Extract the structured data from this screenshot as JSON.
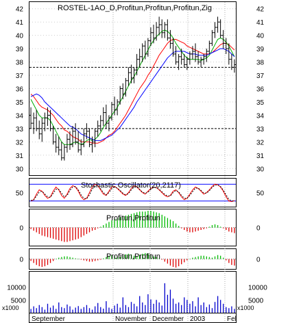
{
  "chart_data": [
    {
      "type": "ohlc",
      "title": "ROSTEL-1AO_D,Profitun,Profitun,Profitun,Zig",
      "ylim": [
        29.5,
        42.5
      ],
      "yticks": [
        "30",
        "31",
        "32",
        "33",
        "34",
        "35",
        "36",
        "37",
        "38",
        "39",
        "40",
        "41",
        "42"
      ],
      "ohlc": [
        [
          34.0,
          34.6,
          33.0,
          33.4
        ],
        [
          33.4,
          34.2,
          32.6,
          33.8
        ],
        [
          33.8,
          34.4,
          32.8,
          33.0
        ],
        [
          33.0,
          33.6,
          32.2,
          32.6
        ],
        [
          32.6,
          33.8,
          32.0,
          33.4
        ],
        [
          33.4,
          34.2,
          32.8,
          33.8
        ],
        [
          33.8,
          34.6,
          33.2,
          34.0
        ],
        [
          34.0,
          34.4,
          32.8,
          33.0
        ],
        [
          33.0,
          33.2,
          31.8,
          32.0
        ],
        [
          32.0,
          32.6,
          31.2,
          31.6
        ],
        [
          31.6,
          32.4,
          31.0,
          31.4
        ],
        [
          31.4,
          32.0,
          30.6,
          30.8
        ],
        [
          30.8,
          31.8,
          30.6,
          31.6
        ],
        [
          31.6,
          32.6,
          31.2,
          32.2
        ],
        [
          32.2,
          32.8,
          31.4,
          31.8
        ],
        [
          31.8,
          33.2,
          31.6,
          32.8
        ],
        [
          32.8,
          33.4,
          31.8,
          32.0
        ],
        [
          32.0,
          32.8,
          31.2,
          31.4
        ],
        [
          31.4,
          32.2,
          31.0,
          31.8
        ],
        [
          31.8,
          33.0,
          31.6,
          32.6
        ],
        [
          32.6,
          33.4,
          32.2,
          32.8
        ],
        [
          32.8,
          33.0,
          31.6,
          31.8
        ],
        [
          31.8,
          32.4,
          31.2,
          32.0
        ],
        [
          32.0,
          33.0,
          31.6,
          32.8
        ],
        [
          32.8,
          33.6,
          32.4,
          33.2
        ],
        [
          33.2,
          34.0,
          32.8,
          33.6
        ],
        [
          33.6,
          34.6,
          33.2,
          34.2
        ],
        [
          34.2,
          34.8,
          33.0,
          33.4
        ],
        [
          33.4,
          34.0,
          32.8,
          33.8
        ],
        [
          33.8,
          35.0,
          33.6,
          34.8
        ],
        [
          34.8,
          35.4,
          34.0,
          34.4
        ],
        [
          34.4,
          35.2,
          34.0,
          35.0
        ],
        [
          35.0,
          36.2,
          34.8,
          36.0
        ],
        [
          36.0,
          36.4,
          35.2,
          35.6
        ],
        [
          35.6,
          36.8,
          35.4,
          36.6
        ],
        [
          36.6,
          37.6,
          36.2,
          37.2
        ],
        [
          37.2,
          37.8,
          36.4,
          36.8
        ],
        [
          36.8,
          37.6,
          36.4,
          37.4
        ],
        [
          37.4,
          38.6,
          37.0,
          38.2
        ],
        [
          38.2,
          39.0,
          37.6,
          38.4
        ],
        [
          38.4,
          39.4,
          38.0,
          39.2
        ],
        [
          39.2,
          39.6,
          38.2,
          38.6
        ],
        [
          38.6,
          39.8,
          38.4,
          39.6
        ],
        [
          39.6,
          40.6,
          39.2,
          40.2
        ],
        [
          40.2,
          40.8,
          39.4,
          39.8
        ],
        [
          39.8,
          41.0,
          39.6,
          40.6
        ],
        [
          40.6,
          41.4,
          40.0,
          40.8
        ],
        [
          40.8,
          41.2,
          39.8,
          40.2
        ],
        [
          40.2,
          41.0,
          39.8,
          40.8
        ],
        [
          40.8,
          41.2,
          39.6,
          39.8
        ],
        [
          39.8,
          40.4,
          39.0,
          39.4
        ],
        [
          39.4,
          39.8,
          38.4,
          38.6
        ],
        [
          38.6,
          39.2,
          37.8,
          38.0
        ],
        [
          38.0,
          38.6,
          37.4,
          38.4
        ],
        [
          38.4,
          39.0,
          37.8,
          38.2
        ],
        [
          38.2,
          38.6,
          37.6,
          37.8
        ],
        [
          37.8,
          38.4,
          37.4,
          38.2
        ],
        [
          38.2,
          38.8,
          37.8,
          38.6
        ],
        [
          38.6,
          39.2,
          38.2,
          38.8
        ],
        [
          38.8,
          39.4,
          38.0,
          38.4
        ],
        [
          38.4,
          38.8,
          37.8,
          38.0
        ],
        [
          38.0,
          38.4,
          37.6,
          38.2
        ],
        [
          38.2,
          38.6,
          37.8,
          38.4
        ],
        [
          38.4,
          39.0,
          38.0,
          38.8
        ],
        [
          38.8,
          39.6,
          38.6,
          39.4
        ],
        [
          39.4,
          40.4,
          39.2,
          40.2
        ],
        [
          40.2,
          41.0,
          39.8,
          40.6
        ],
        [
          40.6,
          41.4,
          40.2,
          41.0
        ],
        [
          41.0,
          41.2,
          39.8,
          40.0
        ],
        [
          40.0,
          40.4,
          39.0,
          39.4
        ],
        [
          39.4,
          39.8,
          38.6,
          39.0
        ],
        [
          39.0,
          39.4,
          37.8,
          38.2
        ],
        [
          38.2,
          38.6,
          37.4,
          37.6
        ],
        [
          37.6,
          38.2,
          37.2,
          37.8
        ]
      ],
      "moving_averages": [
        {
          "color": "#ff0000",
          "values": [
            35.6,
            35.4,
            35.1,
            34.8,
            34.6,
            34.5,
            34.4,
            34.2,
            34.0,
            33.7,
            33.4,
            33.2,
            32.9,
            32.8,
            32.6,
            32.4,
            32.3,
            32.2,
            32.0,
            32.0,
            32.0,
            32.0,
            31.9,
            31.9,
            31.9,
            32.0,
            32.1,
            32.3,
            32.5,
            32.6,
            32.8,
            33.1,
            33.4,
            33.7,
            34.0,
            34.4,
            34.8,
            35.2,
            35.6,
            36.0,
            36.3,
            36.6,
            37.0,
            37.3,
            37.7,
            38.1,
            38.5,
            38.8,
            39.1,
            39.4,
            39.6,
            39.7,
            39.7,
            39.6,
            39.5,
            39.4,
            39.2,
            39.1,
            39.0,
            38.9,
            38.8,
            38.7,
            38.6,
            38.6,
            38.6,
            38.7,
            38.9,
            39.1,
            39.3,
            39.4,
            39.4,
            39.3,
            39.1,
            38.9
          ]
        },
        {
          "color": "#00aa00",
          "values": [
            35.2,
            34.8,
            34.4,
            34.0,
            33.8,
            33.8,
            33.8,
            33.6,
            33.2,
            32.8,
            32.4,
            32.0,
            31.8,
            31.8,
            31.8,
            31.9,
            32.0,
            31.9,
            31.8,
            31.9,
            32.1,
            32.2,
            32.1,
            32.2,
            32.4,
            32.7,
            33.1,
            33.4,
            33.7,
            34.0,
            34.3,
            34.6,
            35.0,
            35.4,
            35.8,
            36.2,
            36.6,
            36.9,
            37.3,
            37.7,
            38.1,
            38.5,
            38.9,
            39.3,
            39.6,
            39.9,
            40.1,
            40.3,
            40.4,
            40.3,
            40.1,
            39.8,
            39.4,
            39.1,
            38.8,
            38.5,
            38.3,
            38.2,
            38.2,
            38.2,
            38.2,
            38.1,
            38.2,
            38.3,
            38.5,
            38.9,
            39.3,
            39.7,
            39.8,
            39.7,
            39.5,
            39.2,
            38.8,
            38.4
          ]
        },
        {
          "color": "#0000ff",
          "values": [
            35.4,
            35.5,
            35.6,
            35.5,
            35.3,
            35.0,
            34.8,
            34.6,
            34.4,
            34.2,
            34.0,
            33.8,
            33.6,
            33.4,
            33.2,
            33.1,
            33.0,
            32.8,
            32.6,
            32.5,
            32.4,
            32.3,
            32.2,
            32.1,
            32.1,
            32.1,
            32.2,
            32.3,
            32.4,
            32.5,
            32.7,
            32.9,
            33.1,
            33.4,
            33.7,
            34.0,
            34.3,
            34.6,
            35.0,
            35.3,
            35.6,
            35.9,
            36.2,
            36.5,
            36.8,
            37.1,
            37.4,
            37.7,
            38.0,
            38.3,
            38.5,
            38.7,
            38.8,
            38.8,
            38.8,
            38.8,
            38.7,
            38.6,
            38.6,
            38.6,
            38.5,
            38.5,
            38.5,
            38.5,
            38.6,
            38.7,
            38.8,
            38.9,
            39.0,
            39.0,
            38.9,
            38.8,
            38.6,
            38.4
          ]
        }
      ],
      "hlines": [
        37.6,
        33.0
      ]
    },
    {
      "type": "line",
      "title": "Stochastic Oscillator(20,2117)",
      "ylim": [
        0,
        100
      ],
      "yticks": [
        "50"
      ],
      "hlines": [
        80,
        20
      ],
      "series": [
        {
          "color": "#ff0000",
          "values": [
            20,
            25,
            45,
            60,
            55,
            40,
            30,
            35,
            55,
            70,
            60,
            40,
            30,
            45,
            65,
            75,
            70,
            55,
            35,
            25,
            30,
            50,
            70,
            80,
            75,
            60,
            45,
            40,
            55,
            70,
            72,
            65,
            55,
            45,
            40,
            50,
            65,
            75,
            70,
            60,
            50,
            45,
            55,
            65,
            70,
            68,
            60,
            50,
            40,
            35,
            40,
            55,
            60,
            50,
            35,
            25,
            30,
            45,
            60,
            70,
            65,
            55,
            45,
            50,
            60,
            72,
            80,
            78,
            70,
            55,
            35,
            20,
            18,
            22
          ]
        },
        {
          "color": "#000000",
          "values": [
            22,
            24,
            38,
            52,
            55,
            45,
            35,
            33,
            48,
            62,
            62,
            48,
            35,
            40,
            58,
            70,
            72,
            60,
            42,
            30,
            28,
            42,
            62,
            75,
            76,
            64,
            50,
            42,
            50,
            64,
            70,
            67,
            58,
            48,
            42,
            46,
            60,
            70,
            71,
            62,
            52,
            47,
            52,
            62,
            68,
            68,
            62,
            53,
            44,
            38,
            38,
            50,
            58,
            53,
            40,
            30,
            29,
            40,
            54,
            66,
            66,
            58,
            48,
            48,
            57,
            68,
            77,
            78,
            72,
            59,
            42,
            26,
            20,
            21
          ]
        }
      ]
    },
    {
      "type": "bar",
      "title": "Profitun,Profitun",
      "yticks": [
        "0"
      ],
      "values": [
        -0.2,
        -0.4,
        -0.6,
        -0.8,
        -1.0,
        -1.1,
        -1.2,
        -1.3,
        -1.4,
        -1.5,
        -1.6,
        -1.7,
        -1.8,
        -1.8,
        -1.7,
        -1.6,
        -1.5,
        -1.4,
        -1.2,
        -1.0,
        -0.8,
        -0.6,
        -0.4,
        -0.3,
        -0.1,
        0.1,
        0.3,
        0.5,
        0.7,
        0.9,
        1.1,
        1.2,
        1.3,
        1.4,
        1.5,
        1.6,
        1.7,
        1.8,
        1.9,
        2.0,
        2.0,
        2.0,
        2.1,
        2.1,
        2.0,
        1.9,
        1.8,
        1.6,
        1.4,
        1.2,
        1.0,
        0.8,
        0.5,
        0.2,
        -0.1,
        -0.3,
        -0.5,
        -0.6,
        -0.6,
        -0.5,
        -0.4,
        -0.3,
        -0.2,
        -0.1,
        0.1,
        0.3,
        0.4,
        0.3,
        0.1,
        -0.1,
        -0.3,
        -0.5,
        -0.6,
        -0.7
      ]
    },
    {
      "type": "bar",
      "title": "Profitun,Profitun",
      "yticks": [
        "0"
      ],
      "values": [
        -0.3,
        -0.6,
        -0.9,
        -1.1,
        -1.2,
        -1.1,
        -0.9,
        -0.6,
        -0.3,
        0.0,
        0.2,
        0.3,
        0.4,
        0.4,
        0.3,
        0.2,
        0.1,
        0.0,
        -0.1,
        -0.2,
        -0.3,
        -0.4,
        -0.4,
        -0.3,
        -0.2,
        -0.1,
        0.1,
        0.3,
        0.5,
        0.6,
        0.5,
        0.4,
        0.3,
        0.5,
        0.7,
        0.8,
        0.7,
        0.5,
        0.4,
        0.6,
        0.8,
        0.9,
        0.8,
        0.6,
        0.4,
        0.3,
        0.1,
        -0.1,
        -0.4,
        -0.7,
        -1.0,
        -1.2,
        -1.3,
        -1.1,
        -0.8,
        -0.5,
        -0.2,
        0.0,
        0.2,
        0.3,
        0.4,
        0.5,
        0.5,
        0.4,
        0.3,
        0.2,
        0.4,
        0.6,
        0.5,
        0.2,
        -0.2,
        -0.6,
        -0.9,
        -1.0
      ]
    },
    {
      "type": "bar",
      "title": "",
      "ylim": [
        0,
        16000
      ],
      "yticks": [
        "5000",
        "10000"
      ],
      "unit_label": "x1000",
      "values": [
        1500,
        2500,
        1800,
        3000,
        2200,
        1200,
        3500,
        2000,
        2800,
        1500,
        4000,
        2200,
        1800,
        3200,
        2500,
        1200,
        2000,
        2600,
        1500,
        2200,
        3000,
        1800,
        1200,
        2500,
        3800,
        2200,
        1600,
        4500,
        2000,
        1500,
        2800,
        3500,
        2000,
        6000,
        3000,
        2200,
        4200,
        3500,
        2500,
        6500,
        4000,
        3000,
        7200,
        5200,
        3500,
        5000,
        4000,
        2800,
        11500,
        7000,
        9000,
        5500,
        3500,
        4000,
        3000,
        6000,
        5000,
        3500,
        4500,
        2500,
        6000,
        3000,
        4000,
        2200,
        3200,
        1800,
        4200,
        6500,
        5000,
        3500,
        2200,
        1800,
        2500,
        1500
      ]
    }
  ],
  "x_axis": {
    "labels": [
      "September",
      "November",
      "December",
      "2003",
      "Fel"
    ]
  }
}
